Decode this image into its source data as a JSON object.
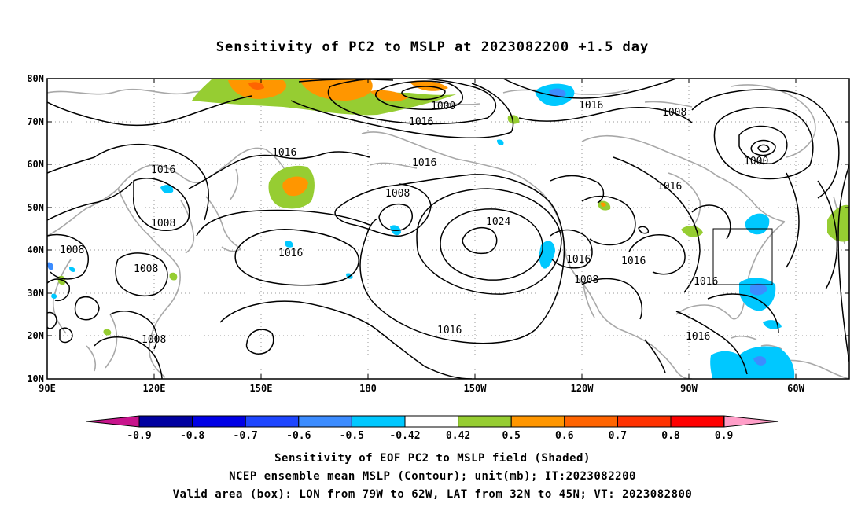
{
  "title": "Sensitivity of PC2 to MSLP at 2023082200 +1.5 day",
  "lat_labels": [
    "80N",
    "70N",
    "60N",
    "50N",
    "40N",
    "30N",
    "20N",
    "10N"
  ],
  "lon_labels": [
    "90E",
    "120E",
    "150E",
    "180",
    "150W",
    "120W",
    "90W",
    "60W"
  ],
  "contour_labels": [
    "1000",
    "1016",
    "1016",
    "1008",
    "1016",
    "1016",
    "1008",
    "1016",
    "1008",
    "1000",
    "1024",
    "1016",
    "1016",
    "1016",
    "1008",
    "1016",
    "1016",
    "1008",
    "1008",
    "1008",
    "1016",
    "1016"
  ],
  "box_area": {
    "lon": [
      "79W",
      "62W"
    ],
    "lat": [
      "32N",
      "45N"
    ]
  },
  "colorbar": {
    "labels": [
      "-0.9",
      "-0.8",
      "-0.7",
      "-0.6",
      "-0.5",
      "-0.42",
      "0.42",
      "0.5",
      "0.6",
      "0.7",
      "0.8",
      "0.9"
    ],
    "colors": [
      "#0000a0",
      "#0000e6",
      "#1e46ff",
      "#3c8cff",
      "#00c8ff",
      "#ffffff",
      "#96cd32",
      "#ff9600",
      "#ff6400",
      "#ff3200",
      "#ff0000"
    ],
    "low_end_color": "#c8148c",
    "high_end_color": "#ff9ec8"
  },
  "shading_colors": {
    "green": "#96cd32",
    "orange": "#ff9600",
    "darkorange": "#ff6400",
    "cyan": "#00c8ff",
    "blue": "#3c8cff",
    "darkblue": "#1e46ff"
  },
  "captions": {
    "line1": "Sensitivity of EOF PC2 to MSLP field (Shaded)",
    "line2": "NCEP ensemble mean MSLP (Contour); unit(mb); IT:2023082200",
    "line3": "Valid area (box): LON from 79W to 62W, LAT from 32N to 45N; VT: 2023082800"
  }
}
